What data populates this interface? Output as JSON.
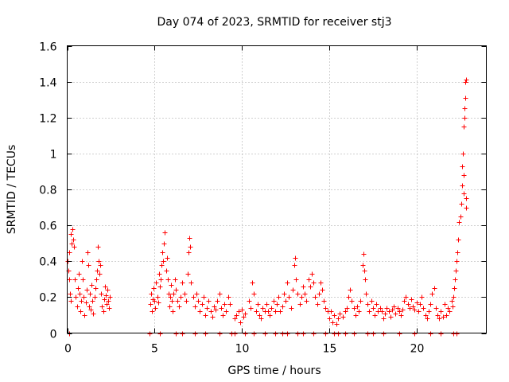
{
  "chart_data": {
    "type": "scatter",
    "title": "Day 074 of 2023, SRMTID for receiver stj3",
    "xlabel": "GPS time / hours",
    "ylabel": "SRMTID / TECUs",
    "xlim": [
      0,
      24
    ],
    "ylim": [
      0,
      1.6
    ],
    "x_ticks": [
      0,
      5,
      10,
      15,
      20
    ],
    "x_tick_labels": [
      "0",
      "5",
      "10",
      "15",
      "20"
    ],
    "y_ticks": [
      0,
      0.2,
      0.4,
      0.6,
      0.8,
      1.0,
      1.2,
      1.4,
      1.6
    ],
    "y_tick_labels": [
      "0",
      "0.2",
      "0.4",
      "0.6",
      "0.8",
      "1",
      "1.2",
      "1.4",
      "1.6"
    ],
    "grid": true,
    "marker": "+",
    "series_color": "#ff0000",
    "series": [
      {
        "name": "SRMTID",
        "points": [
          [
            0.0,
            0.4
          ],
          [
            0.05,
            0.35
          ],
          [
            0.1,
            0.3
          ],
          [
            0.12,
            0.45
          ],
          [
            0.15,
            0.22
          ],
          [
            0.2,
            0.18
          ],
          [
            0.22,
            0.55
          ],
          [
            0.25,
            0.5
          ],
          [
            0.3,
            0.58
          ],
          [
            0.35,
            0.52
          ],
          [
            0.4,
            0.48
          ],
          [
            0.45,
            0.3
          ],
          [
            0.5,
            0.2
          ],
          [
            0.55,
            0.15
          ],
          [
            0.6,
            0.25
          ],
          [
            0.65,
            0.33
          ],
          [
            0.7,
            0.22
          ],
          [
            0.75,
            0.12
          ],
          [
            0.8,
            0.18
          ],
          [
            0.85,
            0.4
          ],
          [
            0.9,
            0.3
          ],
          [
            0.95,
            0.2
          ],
          [
            1.0,
            0.1
          ],
          [
            1.05,
            0.17
          ],
          [
            1.1,
            0.24
          ],
          [
            1.15,
            0.45
          ],
          [
            1.2,
            0.38
          ],
          [
            1.25,
            0.15
          ],
          [
            1.3,
            0.22
          ],
          [
            1.35,
            0.13
          ],
          [
            1.4,
            0.27
          ],
          [
            1.45,
            0.18
          ],
          [
            1.5,
            0.11
          ],
          [
            1.55,
            0.2
          ],
          [
            1.6,
            0.25
          ],
          [
            1.65,
            0.3
          ],
          [
            1.7,
            0.35
          ],
          [
            1.75,
            0.48
          ],
          [
            1.8,
            0.4
          ],
          [
            1.85,
            0.33
          ],
          [
            1.9,
            0.38
          ],
          [
            1.95,
            0.22
          ],
          [
            2.0,
            0.15
          ],
          [
            2.05,
            0.12
          ],
          [
            2.1,
            0.19
          ],
          [
            2.15,
            0.26
          ],
          [
            2.2,
            0.21
          ],
          [
            2.25,
            0.16
          ],
          [
            2.3,
            0.24
          ],
          [
            2.35,
            0.18
          ],
          [
            2.4,
            0.14
          ],
          [
            2.45,
            0.2
          ],
          [
            4.75,
            0.16
          ],
          [
            4.8,
            0.22
          ],
          [
            4.85,
            0.12
          ],
          [
            4.9,
            0.19
          ],
          [
            4.95,
            0.25
          ],
          [
            5.0,
            0.18
          ],
          [
            5.05,
            0.14
          ],
          [
            5.1,
            0.28
          ],
          [
            5.15,
            0.2
          ],
          [
            5.2,
            0.17
          ],
          [
            5.25,
            0.33
          ],
          [
            5.3,
            0.26
          ],
          [
            5.35,
            0.3
          ],
          [
            5.4,
            0.38
          ],
          [
            5.45,
            0.45
          ],
          [
            5.5,
            0.4
          ],
          [
            5.55,
            0.5
          ],
          [
            5.6,
            0.56
          ],
          [
            5.65,
            0.35
          ],
          [
            5.7,
            0.42
          ],
          [
            5.75,
            0.3
          ],
          [
            5.8,
            0.22
          ],
          [
            5.85,
            0.15
          ],
          [
            5.9,
            0.2
          ],
          [
            5.95,
            0.27
          ],
          [
            6.0,
            0.18
          ],
          [
            6.05,
            0.12
          ],
          [
            6.1,
            0.22
          ],
          [
            6.15,
            0.3
          ],
          [
            6.2,
            0.24
          ],
          [
            6.3,
            0.18
          ],
          [
            6.4,
            0.15
          ],
          [
            6.5,
            0.2
          ],
          [
            6.6,
            0.28
          ],
          [
            6.7,
            0.22
          ],
          [
            6.8,
            0.18
          ],
          [
            6.9,
            0.33
          ],
          [
            6.95,
            0.45
          ],
          [
            7.0,
            0.53
          ],
          [
            7.05,
            0.48
          ],
          [
            7.1,
            0.28
          ],
          [
            7.2,
            0.2
          ],
          [
            7.3,
            0.15
          ],
          [
            7.4,
            0.22
          ],
          [
            7.5,
            0.18
          ],
          [
            7.6,
            0.12
          ],
          [
            7.7,
            0.16
          ],
          [
            7.8,
            0.2
          ],
          [
            7.9,
            0.1
          ],
          [
            8.0,
            0.14
          ],
          [
            8.1,
            0.18
          ],
          [
            8.2,
            0.12
          ],
          [
            8.3,
            0.09
          ],
          [
            8.4,
            0.15
          ],
          [
            8.5,
            0.13
          ],
          [
            8.6,
            0.18
          ],
          [
            8.7,
            0.22
          ],
          [
            8.8,
            0.14
          ],
          [
            8.9,
            0.1
          ],
          [
            9.0,
            0.16
          ],
          [
            9.1,
            0.12
          ],
          [
            9.2,
            0.2
          ],
          [
            9.3,
            0.16
          ],
          [
            9.6,
            0.08
          ],
          [
            9.7,
            0.1
          ],
          [
            9.8,
            0.12
          ],
          [
            9.9,
            0.06
          ],
          [
            10.0,
            0.13
          ],
          [
            10.1,
            0.09
          ],
          [
            10.2,
            0.11
          ],
          [
            10.4,
            0.18
          ],
          [
            10.5,
            0.14
          ],
          [
            10.6,
            0.28
          ],
          [
            10.7,
            0.22
          ],
          [
            10.8,
            0.12
          ],
          [
            10.9,
            0.16
          ],
          [
            11.0,
            0.1
          ],
          [
            11.1,
            0.08
          ],
          [
            11.2,
            0.14
          ],
          [
            11.3,
            0.12
          ],
          [
            11.4,
            0.16
          ],
          [
            11.5,
            0.12
          ],
          [
            11.6,
            0.1
          ],
          [
            11.7,
            0.14
          ],
          [
            11.8,
            0.18
          ],
          [
            11.9,
            0.12
          ],
          [
            12.0,
            0.16
          ],
          [
            12.1,
            0.2
          ],
          [
            12.2,
            0.12
          ],
          [
            12.3,
            0.15
          ],
          [
            12.4,
            0.22
          ],
          [
            12.5,
            0.18
          ],
          [
            12.6,
            0.28
          ],
          [
            12.7,
            0.2
          ],
          [
            12.8,
            0.14
          ],
          [
            12.9,
            0.24
          ],
          [
            13.0,
            0.38
          ],
          [
            13.05,
            0.42
          ],
          [
            13.1,
            0.3
          ],
          [
            13.2,
            0.22
          ],
          [
            13.3,
            0.16
          ],
          [
            13.4,
            0.2
          ],
          [
            13.5,
            0.26
          ],
          [
            13.6,
            0.22
          ],
          [
            13.7,
            0.18
          ],
          [
            13.8,
            0.3
          ],
          [
            13.9,
            0.26
          ],
          [
            14.0,
            0.33
          ],
          [
            14.1,
            0.28
          ],
          [
            14.2,
            0.2
          ],
          [
            14.3,
            0.16
          ],
          [
            14.4,
            0.22
          ],
          [
            14.5,
            0.28
          ],
          [
            14.6,
            0.24
          ],
          [
            14.7,
            0.18
          ],
          [
            14.8,
            0.14
          ],
          [
            14.9,
            0.12
          ],
          [
            15.0,
            0.08
          ],
          [
            15.1,
            0.12
          ],
          [
            15.2,
            0.06
          ],
          [
            15.3,
            0.1
          ],
          [
            15.4,
            0.05
          ],
          [
            15.5,
            0.08
          ],
          [
            15.6,
            0.11
          ],
          [
            15.8,
            0.09
          ],
          [
            15.9,
            0.12
          ],
          [
            16.0,
            0.14
          ],
          [
            16.1,
            0.2
          ],
          [
            16.2,
            0.24
          ],
          [
            16.3,
            0.18
          ],
          [
            16.4,
            0.14
          ],
          [
            16.5,
            0.1
          ],
          [
            16.6,
            0.15
          ],
          [
            16.7,
            0.12
          ],
          [
            16.8,
            0.18
          ],
          [
            16.9,
            0.38
          ],
          [
            16.95,
            0.44
          ],
          [
            17.0,
            0.35
          ],
          [
            17.05,
            0.3
          ],
          [
            17.1,
            0.22
          ],
          [
            17.2,
            0.16
          ],
          [
            17.3,
            0.12
          ],
          [
            17.4,
            0.18
          ],
          [
            17.5,
            0.14
          ],
          [
            17.6,
            0.1
          ],
          [
            17.7,
            0.16
          ],
          [
            17.8,
            0.12
          ],
          [
            17.9,
            0.14
          ],
          [
            18.0,
            0.12
          ],
          [
            18.1,
            0.08
          ],
          [
            18.2,
            0.11
          ],
          [
            18.3,
            0.14
          ],
          [
            18.4,
            0.12
          ],
          [
            18.5,
            0.09
          ],
          [
            18.6,
            0.13
          ],
          [
            18.7,
            0.15
          ],
          [
            18.8,
            0.11
          ],
          [
            18.9,
            0.14
          ],
          [
            19.0,
            0.12
          ],
          [
            19.1,
            0.1
          ],
          [
            19.2,
            0.13
          ],
          [
            19.3,
            0.18
          ],
          [
            19.4,
            0.2
          ],
          [
            19.5,
            0.16
          ],
          [
            19.6,
            0.14
          ],
          [
            19.7,
            0.19
          ],
          [
            19.8,
            0.15
          ],
          [
            19.9,
            0.13
          ],
          [
            20.0,
            0.17
          ],
          [
            20.1,
            0.12
          ],
          [
            20.2,
            0.16
          ],
          [
            20.3,
            0.2
          ],
          [
            20.4,
            0.14
          ],
          [
            20.5,
            0.1
          ],
          [
            20.6,
            0.08
          ],
          [
            20.7,
            0.12
          ],
          [
            20.8,
            0.16
          ],
          [
            20.9,
            0.22
          ],
          [
            21.0,
            0.25
          ],
          [
            21.1,
            0.14
          ],
          [
            21.2,
            0.1
          ],
          [
            21.3,
            0.08
          ],
          [
            21.4,
            0.12
          ],
          [
            21.5,
            0.09
          ],
          [
            21.6,
            0.16
          ],
          [
            21.7,
            0.1
          ],
          [
            21.8,
            0.14
          ],
          [
            21.9,
            0.12
          ],
          [
            22.0,
            0.18
          ],
          [
            22.05,
            0.15
          ],
          [
            22.1,
            0.2
          ],
          [
            22.15,
            0.25
          ],
          [
            22.2,
            0.3
          ],
          [
            22.25,
            0.35
          ],
          [
            22.3,
            0.4
          ],
          [
            22.35,
            0.45
          ],
          [
            22.4,
            0.52
          ],
          [
            22.45,
            0.62
          ],
          [
            22.5,
            0.65
          ],
          [
            22.55,
            0.72
          ],
          [
            22.6,
            0.82
          ],
          [
            22.62,
            0.93
          ],
          [
            22.65,
            1.0
          ],
          [
            22.68,
            0.88
          ],
          [
            22.7,
            0.78
          ],
          [
            22.72,
            1.15
          ],
          [
            22.74,
            1.2
          ],
          [
            22.76,
            1.25
          ],
          [
            22.78,
            1.31
          ],
          [
            22.8,
            1.4
          ],
          [
            22.82,
            1.41
          ],
          [
            22.84,
            0.75
          ],
          [
            22.86,
            0.7
          ]
        ],
        "zero_points_x": [
          0.1,
          4.7,
          5.3,
          6.2,
          6.6,
          7.3,
          7.9,
          8.7,
          9.4,
          9.6,
          10.2,
          10.7,
          11.3,
          11.9,
          12.3,
          12.6,
          13.2,
          13.5,
          14.1,
          14.8,
          15.3,
          15.5,
          15.9,
          16.4,
          17.2,
          17.5,
          18.1,
          19.0,
          19.9,
          20.8,
          21.4,
          22.1,
          22.3
        ]
      }
    ]
  }
}
